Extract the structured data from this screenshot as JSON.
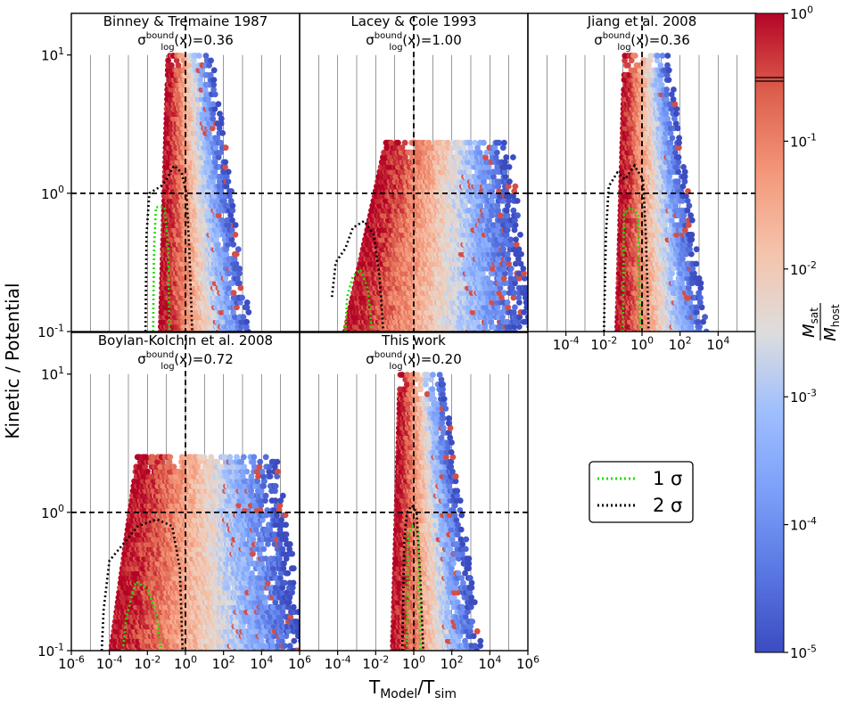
{
  "chart_data": {
    "type": "heatmap",
    "figure": {
      "ylabel": "Kinetic / Potential",
      "xlabel": "T",
      "xlabel_sub1": "Model",
      "xlabel_mid": "/T",
      "xlabel_sub2": "sim"
    },
    "x_axis": {
      "scale": "log",
      "range": [
        1e-06,
        1000000.0
      ],
      "tick_exponents": [
        -6,
        -4,
        -2,
        0,
        2,
        4,
        6
      ],
      "tick_labels_full": [
        "10",
        "10",
        "10",
        "10",
        "10",
        "10",
        "10"
      ],
      "tick_labels_top_right": [
        -4,
        -2,
        0,
        2,
        4
      ]
    },
    "y_axis": {
      "scale": "log",
      "range": [
        0.1,
        20
      ],
      "tick_values": [
        0.1,
        1,
        10
      ],
      "tick_labels": [
        "10",
        "10",
        "10"
      ],
      "tick_exponents": [
        "-1",
        "0",
        "1"
      ],
      "reference_line": 1.0
    },
    "reference_lines": {
      "x": 1.0,
      "y": 1.0,
      "style": "dashed black"
    },
    "sigma_prefix": "σ",
    "sigma_sup": "bound",
    "sigma_sub": "log",
    "sigma_arg": "(x)=",
    "panels": [
      {
        "title": "Binney & Tremaine 1987",
        "sigma": "0.36",
        "density": {
          "xc": 0.0,
          "xw": 0.9,
          "ytop": 1.0,
          "skew": 0.0,
          "tilt": 0.0
        },
        "contour_1sigma": [
          [
            -1.7,
            -1
          ],
          [
            -1.65,
            -0.4
          ],
          [
            -1.55,
            -0.1
          ],
          [
            -1.1,
            -0.1
          ],
          [
            -0.9,
            -0.4
          ],
          [
            -0.85,
            -1
          ]
        ],
        "contour_2sigma": [
          [
            -2.1,
            -1
          ],
          [
            -2.05,
            -0.3
          ],
          [
            -1.9,
            0.0
          ],
          [
            -1.3,
            0.05
          ],
          [
            -1,
            0.1
          ],
          [
            -0.6,
            0.2
          ],
          [
            -0.2,
            0.15
          ],
          [
            0.05,
            0.0
          ],
          [
            0.2,
            -0.4
          ],
          [
            0.35,
            -1
          ]
        ]
      },
      {
        "title": "Lacey & Cole 1993",
        "sigma": "1.00",
        "density": {
          "xc": 0.6,
          "xw": 3.0,
          "ytop": 0.4,
          "skew": 0.8,
          "tilt": 1.0
        },
        "contour_1sigma": [
          [
            -3.6,
            -1
          ],
          [
            -3.5,
            -0.75
          ],
          [
            -3.2,
            -0.6
          ],
          [
            -2.8,
            -0.55
          ],
          [
            -2.4,
            -0.7
          ],
          [
            -2.2,
            -1
          ]
        ],
        "contour_2sigma": [
          [
            -4.3,
            -0.75
          ],
          [
            -4.1,
            -0.5
          ],
          [
            -3.6,
            -0.4
          ],
          [
            -3.2,
            -0.25
          ],
          [
            -2.6,
            -0.2
          ],
          [
            -2.1,
            -0.3
          ],
          [
            -1.8,
            -0.6
          ],
          [
            -1.6,
            -1
          ]
        ]
      },
      {
        "title": "Jiang et al. 2008",
        "sigma": "0.36",
        "density": {
          "xc": 0.0,
          "xw": 0.9,
          "ytop": 1.0,
          "skew": 0.0,
          "tilt": 0.0
        },
        "contour_1sigma": [
          [
            -1.0,
            -1
          ],
          [
            -0.95,
            -0.15
          ],
          [
            -0.6,
            -0.1
          ],
          [
            -0.2,
            -0.15
          ],
          [
            -0.1,
            -1
          ]
        ],
        "contour_2sigma": [
          [
            -2.0,
            -1
          ],
          [
            -1.9,
            -0.3
          ],
          [
            -1.75,
            0.05
          ],
          [
            -1.3,
            0.15
          ],
          [
            -0.9,
            0.1
          ],
          [
            -0.4,
            0.2
          ],
          [
            0.05,
            0.1
          ],
          [
            0.2,
            -0.3
          ],
          [
            0.35,
            -1
          ]
        ]
      },
      {
        "title": "Boylan-Kolchin et al. 2008",
        "sigma": "0.72",
        "density": {
          "xc": 0.4,
          "xw": 3.4,
          "ytop": 0.42,
          "skew": 0.5,
          "tilt": 0.5
        },
        "contour_1sigma": [
          [
            -3.3,
            -1
          ],
          [
            -3.1,
            -0.75
          ],
          [
            -2.6,
            -0.5
          ],
          [
            -2.0,
            -0.55
          ],
          [
            -1.5,
            -0.75
          ],
          [
            -1.3,
            -1
          ]
        ],
        "contour_2sigma": [
          [
            -4.4,
            -1
          ],
          [
            -4.3,
            -0.7
          ],
          [
            -4.0,
            -0.35
          ],
          [
            -3.4,
            -0.25
          ],
          [
            -2.5,
            -0.1
          ],
          [
            -1.5,
            -0.05
          ],
          [
            -0.7,
            -0.1
          ],
          [
            -0.3,
            -0.4
          ],
          [
            -0.15,
            -1
          ]
        ]
      },
      {
        "title": "This work",
        "sigma": "0.20",
        "density": {
          "xc": 0.15,
          "xw": 0.85,
          "ytop": 1.0,
          "skew": 0.0,
          "tilt": 0.0
        },
        "contour_1sigma": [
          [
            -0.35,
            -1
          ],
          [
            -0.3,
            -0.15
          ],
          [
            -0.05,
            -0.1
          ],
          [
            0.25,
            -0.15
          ],
          [
            0.35,
            -1
          ]
        ],
        "contour_2sigma": [
          [
            -0.6,
            -1
          ],
          [
            -0.5,
            -0.2
          ],
          [
            -0.35,
            0.0
          ],
          [
            -0.1,
            0.05
          ],
          [
            0.15,
            0.0
          ],
          [
            0.35,
            -0.5
          ],
          [
            0.5,
            -1
          ]
        ]
      }
    ],
    "legend": {
      "placement": "center of empty bottom-right cell",
      "entries": [
        {
          "label": "1 σ",
          "color": "#22dd00",
          "style": "dotted"
        },
        {
          "label": "2 σ",
          "color": "#000000",
          "style": "dotted"
        }
      ]
    },
    "colorbar": {
      "label_num": "M",
      "label_num_sub": "sat",
      "label_den": "M",
      "label_den_sub": "host",
      "scale": "log",
      "range": [
        1e-05,
        1
      ],
      "tick_base": "10",
      "tick_exponents": [
        "-5",
        "-4",
        "-3",
        "-2",
        "-1",
        "0"
      ],
      "colormap": "coolwarm"
    }
  },
  "colors": {
    "blue": "#3b4cc0",
    "white": "#dddddd",
    "red": "#b40426",
    "sigma1": "#22dd00",
    "sigma2": "#000000"
  }
}
